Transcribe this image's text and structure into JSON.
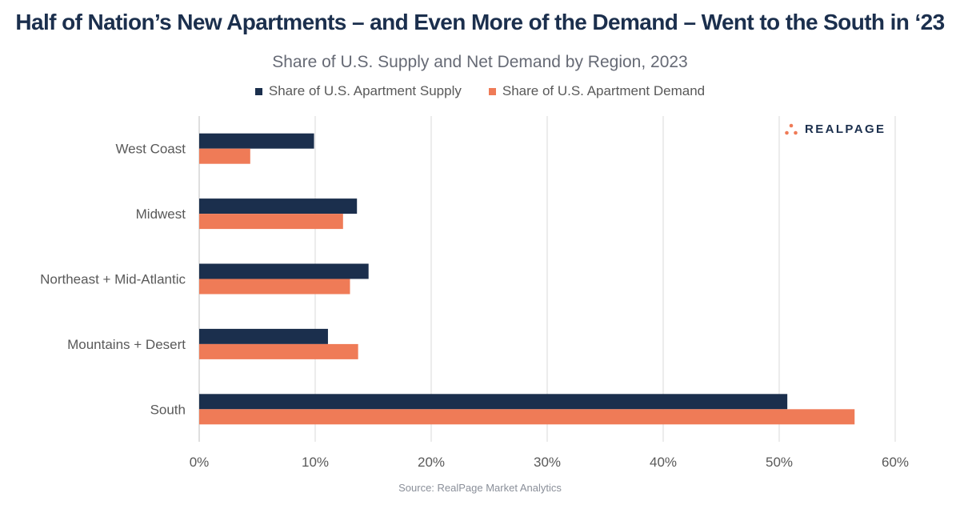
{
  "headline": "Half of Nation’s New Apartments – and Even More of the Demand – Went to the South in ‘23",
  "logo": {
    "text": "REALPAGE",
    "icon": "realpage-dots-icon"
  },
  "source": "Source: RealPage Market Analytics",
  "chart_data": {
    "type": "bar",
    "orientation": "horizontal",
    "title": "Share of U.S. Supply and Net Demand by Region, 2023",
    "categories": [
      "West Coast",
      "Midwest",
      "Northeast + Mid-Atlantic",
      "Mountains + Desert",
      "South"
    ],
    "series": [
      {
        "name": "Share of U.S. Apartment Supply",
        "color": "#1b2f4d",
        "values": [
          9.9,
          13.6,
          14.6,
          11.1,
          50.7
        ]
      },
      {
        "name": "Share of U.S. Apartment Demand",
        "color": "#ef7b57",
        "values": [
          4.4,
          12.4,
          13.0,
          13.7,
          56.5
        ]
      }
    ],
    "xlim": [
      0,
      60
    ],
    "xticks": [
      0,
      10,
      20,
      30,
      40,
      50,
      60
    ],
    "tick_suffix": "%",
    "xlabel": "",
    "ylabel": "",
    "grid": "vertical",
    "legend": "top-center"
  }
}
